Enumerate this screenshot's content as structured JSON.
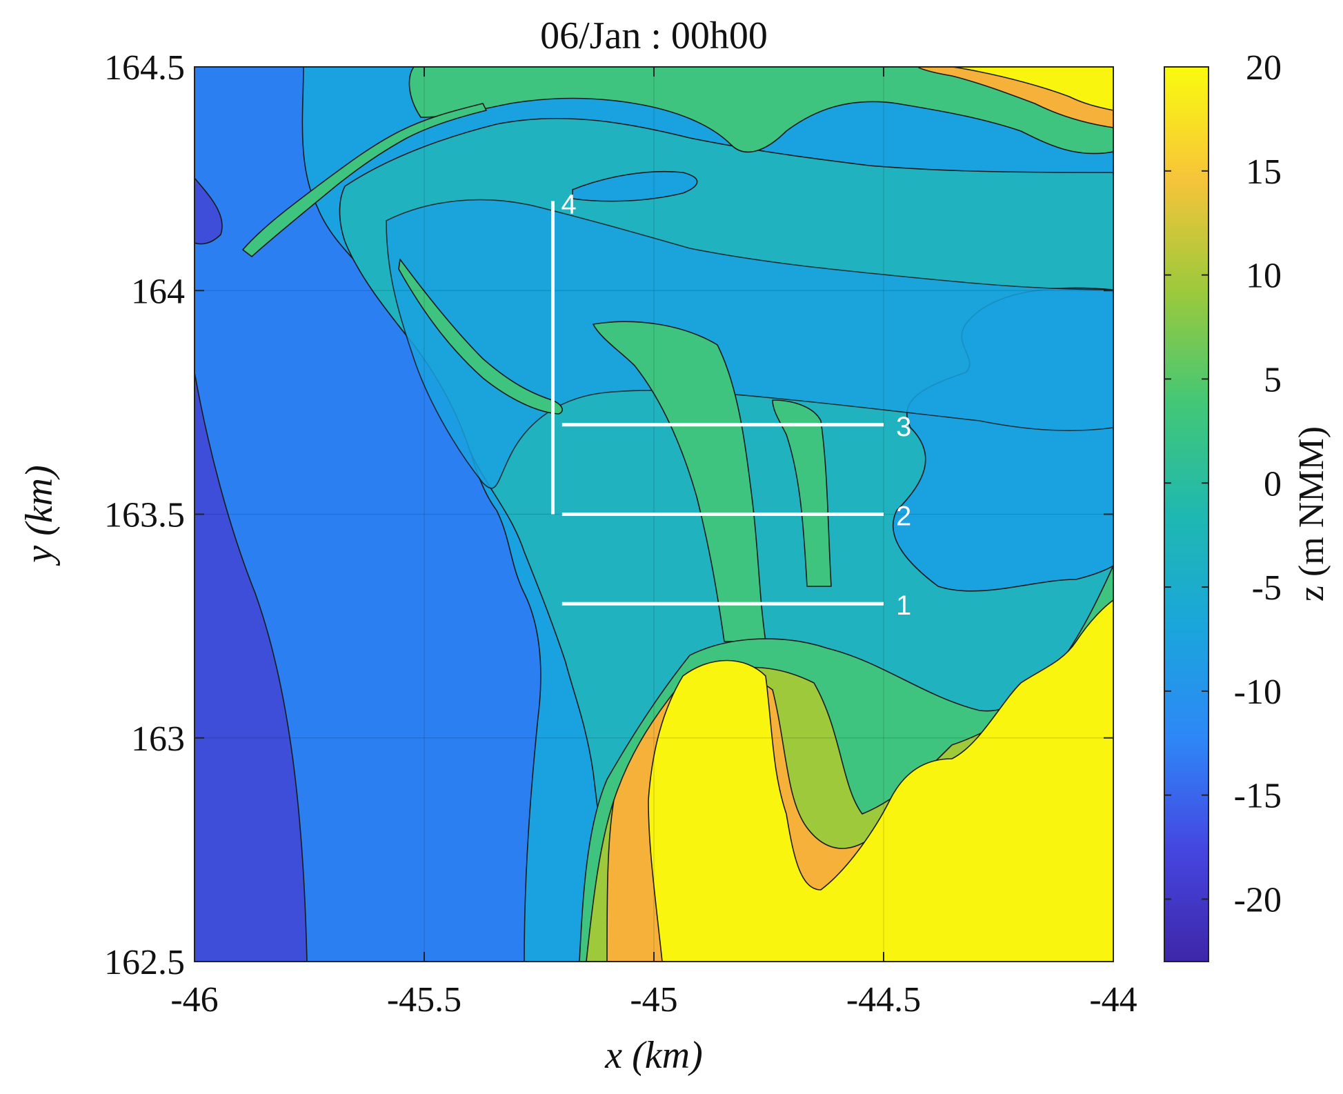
{
  "chart_data": {
    "type": "heatmap",
    "title": "06/Jan : 00h00",
    "xlabel": "x (km)",
    "ylabel": "y (km)",
    "xlim": [
      -46,
      -44
    ],
    "ylim": [
      162.5,
      164.5
    ],
    "xticks": [
      -46,
      -45.5,
      -45,
      -44.5,
      -44
    ],
    "yticks": [
      162.5,
      163,
      163.5,
      164,
      164.5
    ],
    "x_tick_labels": [
      "-46",
      "-45.5",
      "-45",
      "-44.5",
      "-44"
    ],
    "y_tick_labels": [
      "162.5",
      "163",
      "163.5",
      "164",
      "164.5"
    ],
    "grid": true,
    "colorbar": {
      "label": "z (m NMM)",
      "range": [
        -23,
        20
      ],
      "ticks": [
        20,
        15,
        10,
        5,
        0,
        -5,
        -10,
        -15,
        -20
      ],
      "tick_labels": [
        "20",
        "15",
        "10",
        "5",
        "0",
        "-5",
        "-10",
        "-15",
        "-20"
      ],
      "colormap": "parula"
    },
    "contour_levels": [
      -20,
      -15,
      -10,
      -7,
      -5,
      -3,
      0,
      3,
      5,
      10,
      15,
      20
    ],
    "transects": [
      {
        "label": "1",
        "x": [
          -45.2,
          -44.5
        ],
        "y": [
          163.3,
          163.3
        ]
      },
      {
        "label": "2",
        "x": [
          -45.2,
          -44.5
        ],
        "y": [
          163.5,
          163.5
        ]
      },
      {
        "label": "3",
        "x": [
          -45.2,
          -44.5
        ],
        "y": [
          163.7,
          163.7
        ]
      },
      {
        "label": "4",
        "x": [
          -45.22,
          -45.22
        ],
        "y": [
          163.5,
          164.2
        ]
      }
    ]
  }
}
